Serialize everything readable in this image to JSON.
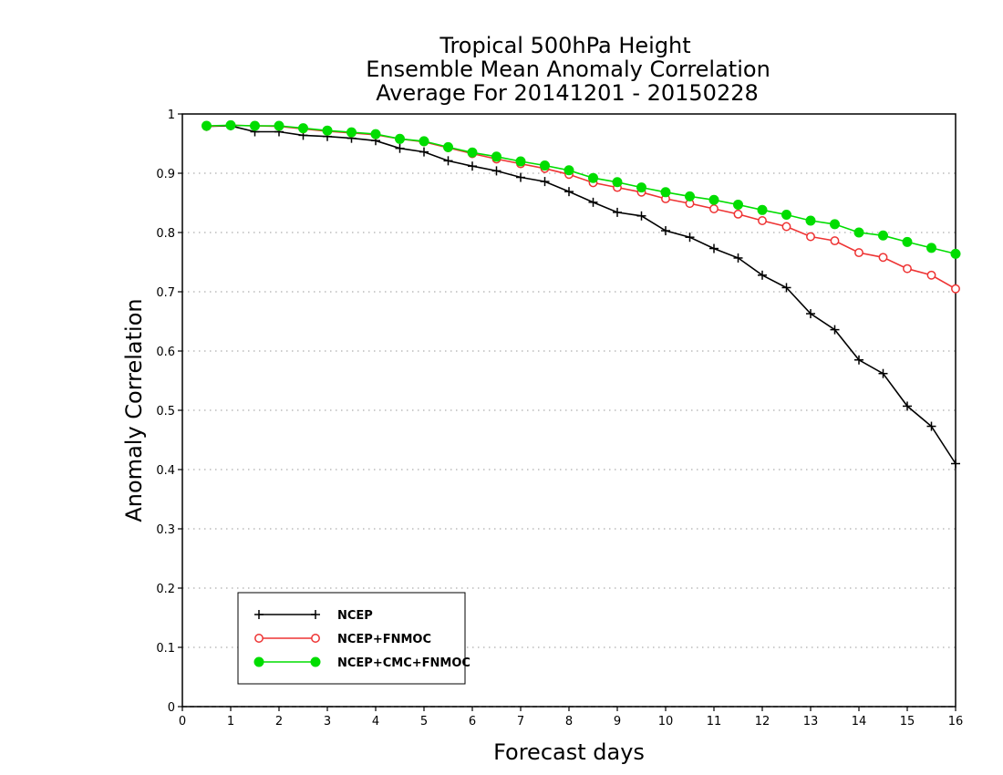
{
  "chart_data": {
    "type": "line",
    "title": [
      "Tropical 500hPa Height",
      "Ensemble Mean Anomaly Correlation",
      "Average For 20141201 - 20150228"
    ],
    "xlabel": "Forecast days",
    "ylabel": "Anomaly Correlation",
    "xlim": [
      0,
      16
    ],
    "ylim": [
      0,
      1
    ],
    "xticks": [
      "0",
      "1",
      "2",
      "3",
      "4",
      "5",
      "6",
      "7",
      "8",
      "9",
      "10",
      "11",
      "12",
      "13",
      "14",
      "15",
      "16"
    ],
    "yticks": [
      "0",
      "0.1",
      "0.2",
      "0.3",
      "0.4",
      "0.5",
      "0.6",
      "0.7",
      "0.8",
      "0.9",
      "1"
    ],
    "grid": true,
    "legend_position": "bottom-left",
    "x": [
      0.5,
      1,
      1.5,
      2,
      2.5,
      3,
      3.5,
      4,
      4.5,
      5,
      5.5,
      6,
      6.5,
      7,
      7.5,
      8,
      8.5,
      9,
      9.5,
      10,
      10.5,
      11,
      11.5,
      12,
      12.5,
      13,
      13.5,
      14,
      14.5,
      15,
      15.5,
      16
    ],
    "series": [
      {
        "name": "NCEP",
        "color": "#000000",
        "marker": "plus",
        "values": [
          0.979,
          0.98,
          0.97,
          0.97,
          0.964,
          0.962,
          0.959,
          0.955,
          0.942,
          0.936,
          0.921,
          0.912,
          0.904,
          0.893,
          0.886,
          0.869,
          0.851,
          0.834,
          0.828,
          0.803,
          0.792,
          0.773,
          0.757,
          0.728,
          0.707,
          0.663,
          0.636,
          0.585,
          0.562,
          0.507,
          0.473,
          0.41
        ]
      },
      {
        "name": "NCEP+FNMOC",
        "color": "#ee3333",
        "marker": "open-circle",
        "values": [
          0.979,
          0.981,
          0.98,
          0.979,
          0.975,
          0.971,
          0.968,
          0.965,
          0.958,
          0.953,
          0.943,
          0.933,
          0.924,
          0.916,
          0.908,
          0.898,
          0.884,
          0.876,
          0.868,
          0.857,
          0.849,
          0.84,
          0.831,
          0.82,
          0.81,
          0.793,
          0.786,
          0.766,
          0.758,
          0.739,
          0.728,
          0.705
        ]
      },
      {
        "name": "NCEP+CMC+FNMOC",
        "color": "#00dd00",
        "marker": "filled-circle",
        "values": [
          0.98,
          0.981,
          0.98,
          0.98,
          0.976,
          0.972,
          0.969,
          0.966,
          0.958,
          0.954,
          0.944,
          0.935,
          0.928,
          0.92,
          0.913,
          0.905,
          0.892,
          0.885,
          0.876,
          0.868,
          0.861,
          0.855,
          0.847,
          0.838,
          0.83,
          0.82,
          0.814,
          0.8,
          0.795,
          0.784,
          0.774,
          0.764
        ]
      }
    ]
  }
}
